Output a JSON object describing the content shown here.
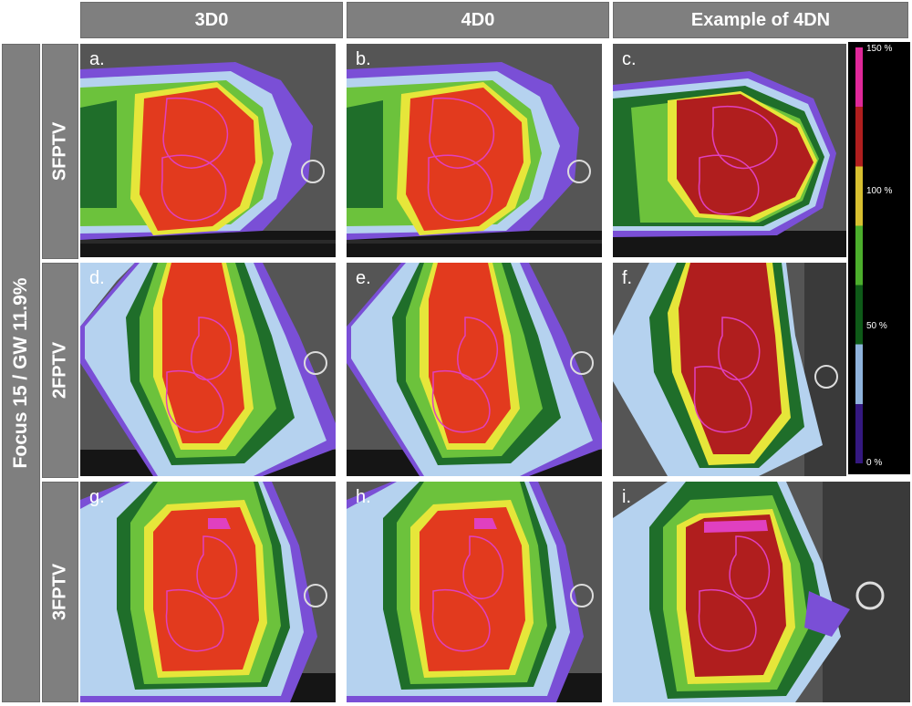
{
  "columns": [
    "3D0",
    "4D0",
    "Example of 4DN"
  ],
  "outer_label": "Focus 15 / GW 11.9%",
  "rows": [
    "SFPTV",
    "2FPTV",
    "3FPTV"
  ],
  "panels": [
    "a.",
    "b.",
    "c.",
    "d.",
    "e.",
    "f.",
    "g.",
    "h.",
    "i."
  ],
  "colorbar": {
    "labels": [
      "150 %",
      "100 %",
      "50 %",
      "0 %"
    ],
    "colors": [
      "#e0289a",
      "#b01e1e",
      "#d8c030",
      "#4cae2c",
      "#0e5a18",
      "#8fb3dc",
      "#341880"
    ]
  },
  "dose_colors": {
    "purple": "#7a4fd6",
    "light_blue": "#b5d2ef",
    "dark_green": "#1f6e2a",
    "green": "#6cc23c",
    "yellow": "#e6e63a",
    "orange": "#f0a028",
    "red": "#e23a1e",
    "magenta": "#e040c0"
  }
}
